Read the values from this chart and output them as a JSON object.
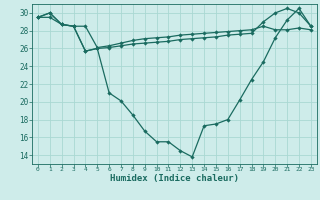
{
  "xlabel": "Humidex (Indice chaleur)",
  "bg_color": "#ceecea",
  "line_color": "#1a6b60",
  "grid_color": "#aad8d3",
  "xlim": [
    -0.5,
    23.5
  ],
  "ylim": [
    13.0,
    31.0
  ],
  "yticks": [
    14,
    16,
    18,
    20,
    22,
    24,
    26,
    28,
    30
  ],
  "xticks": [
    0,
    1,
    2,
    3,
    4,
    5,
    6,
    7,
    8,
    9,
    10,
    11,
    12,
    13,
    14,
    15,
    16,
    17,
    18,
    19,
    20,
    21,
    22,
    23
  ],
  "line1": [
    29.5,
    30.0,
    28.7,
    28.5,
    25.7,
    26.0,
    26.1,
    26.3,
    26.5,
    26.6,
    26.7,
    26.8,
    27.0,
    27.1,
    27.2,
    27.3,
    27.5,
    27.6,
    27.7,
    29.0,
    30.0,
    30.5,
    30.0,
    28.5
  ],
  "line2": [
    29.5,
    30.0,
    28.7,
    28.5,
    25.7,
    26.0,
    21.0,
    20.1,
    18.5,
    16.7,
    15.5,
    15.5,
    14.5,
    13.8,
    17.3,
    17.5,
    18.0,
    20.2,
    22.5,
    24.5,
    27.2,
    29.2,
    30.5,
    28.5
  ],
  "line3": [
    29.5,
    29.5,
    28.7,
    28.5,
    28.5,
    26.1,
    26.3,
    26.6,
    26.9,
    27.1,
    27.2,
    27.3,
    27.5,
    27.6,
    27.7,
    27.8,
    27.9,
    28.0,
    28.1,
    28.5,
    28.1,
    28.1,
    28.3,
    28.1
  ]
}
